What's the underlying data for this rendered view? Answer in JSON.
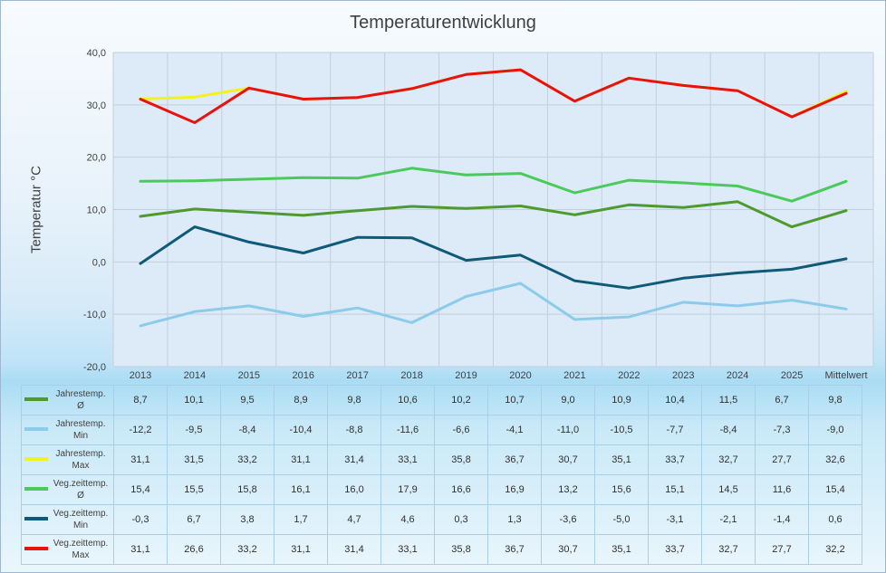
{
  "chart_data": {
    "type": "line",
    "title": "Temperaturentwicklung",
    "ylabel": "Temperatur °C",
    "xlabel": "",
    "ylim": [
      -20,
      40
    ],
    "ytick_step": 10,
    "grid": true,
    "legend": "data-table-below",
    "categories": [
      "2013",
      "2014",
      "2015",
      "2016",
      "2017",
      "2018",
      "2019",
      "2020",
      "2021",
      "2022",
      "2023",
      "2024",
      "2025",
      "Mittelwert"
    ],
    "series": [
      {
        "name": "Jahrestemp. Ø",
        "label_lines": [
          "Jahrestemp.",
          "Ø"
        ],
        "color": "#4e9a2f",
        "values": [
          8.7,
          10.1,
          9.5,
          8.9,
          9.8,
          10.6,
          10.2,
          10.7,
          9.0,
          10.9,
          10.4,
          11.5,
          6.7,
          9.8
        ]
      },
      {
        "name": "Jahrestemp. Min",
        "label_lines": [
          "Jahrestemp.",
          "Min"
        ],
        "color": "#8ccbea",
        "values": [
          -12.2,
          -9.5,
          -8.4,
          -10.4,
          -8.8,
          -11.6,
          -6.6,
          -4.1,
          -11.0,
          -10.5,
          -7.7,
          -8.4,
          -7.3,
          -9.0
        ]
      },
      {
        "name": "Jahrestemp. Max",
        "label_lines": [
          "Jahrestemp.",
          "Max"
        ],
        "color": "#f5f020",
        "values": [
          31.1,
          31.5,
          33.2,
          31.1,
          31.4,
          33.1,
          35.8,
          36.7,
          30.7,
          35.1,
          33.7,
          32.7,
          27.7,
          32.6
        ]
      },
      {
        "name": "Veg.zeittemp. Ø",
        "label_lines": [
          "Veg.zeittemp.",
          "Ø"
        ],
        "color": "#4cc95c",
        "values": [
          15.4,
          15.5,
          15.8,
          16.1,
          16.0,
          17.9,
          16.6,
          16.9,
          13.2,
          15.6,
          15.1,
          14.5,
          11.6,
          15.4
        ]
      },
      {
        "name": "Veg.zeittemp. Min",
        "label_lines": [
          "Veg.zeittemp.",
          "Min"
        ],
        "color": "#0e5a78",
        "values": [
          -0.3,
          6.7,
          3.8,
          1.7,
          4.7,
          4.6,
          0.3,
          1.3,
          -3.6,
          -5.0,
          -3.1,
          -2.1,
          -1.4,
          0.6
        ]
      },
      {
        "name": "Veg.zeittemp. Max",
        "label_lines": [
          "Veg.zeittemp.",
          "Max"
        ],
        "color": "#e8120f",
        "values": [
          31.1,
          26.6,
          33.2,
          31.1,
          31.4,
          33.1,
          35.8,
          36.7,
          30.7,
          35.1,
          33.7,
          32.7,
          27.7,
          32.2
        ]
      }
    ]
  }
}
